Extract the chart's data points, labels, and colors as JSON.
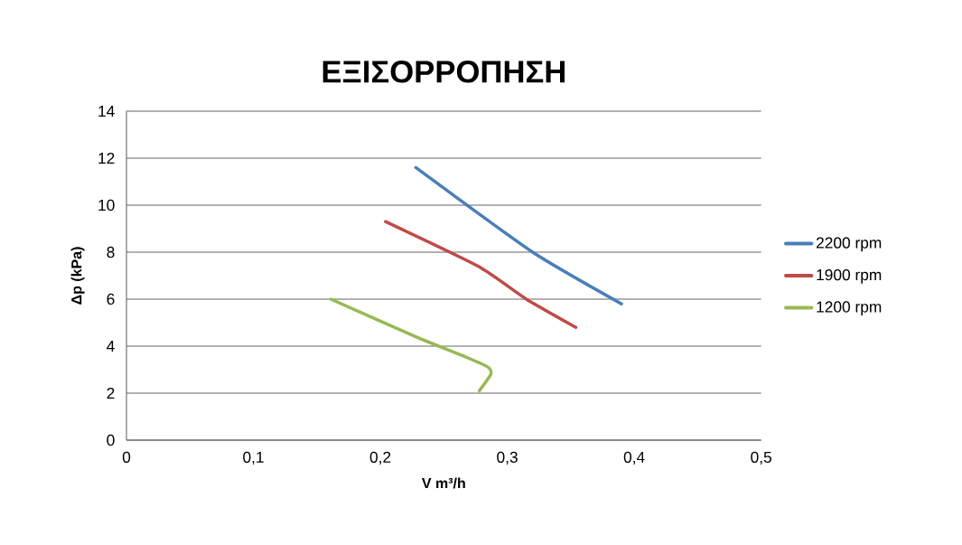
{
  "chart_data": {
    "type": "line",
    "title": "ΕΞΙΣΟΡΡΟΠΗΣΗ",
    "xlabel": "V m³/h",
    "ylabel": "Δp (kPa)",
    "xlim": [
      0,
      0.5
    ],
    "ylim": [
      0,
      14
    ],
    "xticks": [
      0,
      {
        "value": 0.1,
        "label": "0,1"
      },
      {
        "value": 0.2,
        "label": "0,2"
      },
      {
        "value": 0.3,
        "label": "0,3"
      },
      {
        "value": 0.4,
        "label": "0,4"
      },
      {
        "value": 0.5,
        "label": "0,5"
      }
    ],
    "yticks": [
      0,
      2,
      4,
      6,
      8,
      10,
      12,
      14
    ],
    "grid": "y",
    "legend": "right",
    "marker": "none",
    "line_style": "solid",
    "series": [
      {
        "name": "2200 rpm",
        "color": "#4a7ebb",
        "x": [
          0.228,
          0.32,
          0.39
        ],
        "values": [
          11.6,
          8.0,
          5.8
        ]
      },
      {
        "name": "1900 rpm",
        "color": "#be4b48",
        "x": [
          0.204,
          0.277,
          0.315,
          0.354
        ],
        "values": [
          9.3,
          7.4,
          6.0,
          4.8
        ]
      },
      {
        "name": "1200 rpm",
        "color": "#98b954",
        "x": [
          0.161,
          0.228,
          0.269,
          0.285,
          0.287,
          0.278
        ],
        "values": [
          6.0,
          4.4,
          3.5,
          3.1,
          2.8,
          2.1
        ]
      }
    ]
  }
}
